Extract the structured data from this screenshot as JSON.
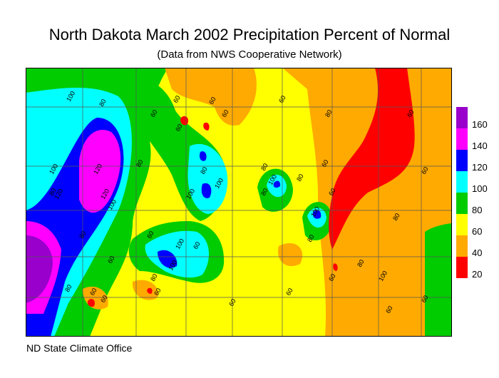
{
  "title": "North Dakota March 2002 Precipitation Percent of Normal",
  "subtitle": "(Data from NWS Cooperative Network)",
  "credit": "ND State Climate Office",
  "legend": {
    "bins": [
      {
        "label": "20",
        "color": "#ff0000"
      },
      {
        "label": "40",
        "color": "#ffaa00"
      },
      {
        "label": "60",
        "color": "#ffff00"
      },
      {
        "label": "80",
        "color": "#00cc00"
      },
      {
        "label": "100",
        "color": "#00ffff"
      },
      {
        "label": "120",
        "color": "#0000ff"
      },
      {
        "label": "140",
        "color": "#ff00ff"
      },
      {
        "label": "160",
        "color": "#9900cc"
      }
    ]
  },
  "contour_labels": [
    "100",
    "100",
    "80",
    "80",
    "60",
    "60",
    "60",
    "60",
    "60",
    "80",
    "100",
    "120",
    "120",
    "120",
    "80",
    "100",
    "80",
    "100",
    "100",
    "80",
    "60",
    "80",
    "100",
    "80",
    "100",
    "100",
    "60",
    "60",
    "60",
    "80",
    "80",
    "60",
    "60",
    "60",
    "60",
    "60",
    "60",
    "80",
    "100",
    "60",
    "80",
    "60",
    "60",
    "80",
    "60",
    "60",
    "60",
    "80"
  ]
}
